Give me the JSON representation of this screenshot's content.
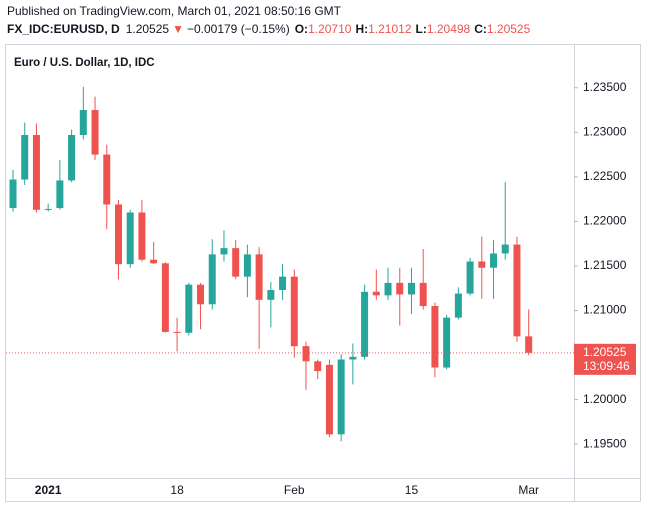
{
  "chart_data": {
    "type": "candlestick",
    "published": "Published on TradingView.com, March 01, 2021 08:50:16 GMT",
    "symbol": "FX_IDC:EURUSD, D",
    "last": "1.20525",
    "arrow": "▼",
    "change": "−0.00179 (−0.15%)",
    "ohlc_header": [
      {
        "label": "O:",
        "value": "1.20710"
      },
      {
        "label": "H:",
        "value": "1.21012"
      },
      {
        "label": "L:",
        "value": "1.20498"
      },
      {
        "label": "C:",
        "value": "1.20525"
      }
    ],
    "title": "Euro / U.S. Dollar, 1D, IDC",
    "up_color": "#26a69a",
    "down_color": "#ef5350",
    "categories": [
      null,
      null,
      null,
      "2021",
      null,
      null,
      null,
      null,
      null,
      null,
      null,
      null,
      null,
      null,
      "18",
      null,
      null,
      null,
      null,
      null,
      null,
      null,
      null,
      null,
      "Feb",
      null,
      null,
      null,
      null,
      null,
      null,
      null,
      null,
      null,
      "15",
      null,
      null,
      null,
      null,
      null,
      null,
      null,
      null,
      null,
      "Mar"
    ],
    "open": [
      1.2215,
      1.2247,
      1.2297,
      1.2213,
      1.2215,
      1.2246,
      1.2297,
      1.2325,
      1.2275,
      1.2219,
      1.2152,
      1.221,
      1.2157,
      1.2153,
      1.2076,
      1.2075,
      1.2129,
      1.2107,
      1.2163,
      1.217,
      1.2138,
      1.2163,
      1.2112,
      1.2123,
      1.2138,
      1.206,
      1.2043,
      1.2039,
      1.1961,
      1.2045,
      1.2048,
      1.2121,
      1.2117,
      1.2131,
      1.2118,
      1.2131,
      1.2105,
      1.2036,
      1.2092,
      1.2119,
      1.2155,
      1.2148,
      1.2164,
      1.2174,
      1.2071
    ],
    "high": [
      1.2258,
      1.2311,
      1.231,
      1.222,
      1.2269,
      1.2303,
      1.2351,
      1.234,
      1.2286,
      1.2224,
      1.2213,
      1.2224,
      1.2177,
      1.2154,
      1.2092,
      1.2131,
      1.2131,
      1.218,
      1.219,
      1.2179,
      1.2174,
      1.2171,
      1.2132,
      1.2152,
      1.2146,
      1.2065,
      1.2045,
      1.2045,
      1.2051,
      1.2063,
      1.2129,
      1.2146,
      1.2148,
      1.2148,
      1.2148,
      1.2169,
      1.2109,
      1.2095,
      1.2126,
      1.2159,
      1.2183,
      1.2179,
      1.2244,
      1.2183,
      1.21012
    ],
    "low": [
      1.2211,
      1.2241,
      1.221,
      1.2211,
      1.2213,
      1.2244,
      1.2292,
      1.2269,
      1.2191,
      1.2135,
      1.2148,
      1.2155,
      1.2152,
      1.2075,
      1.2054,
      1.2072,
      1.2079,
      1.2101,
      1.2155,
      1.2135,
      1.2115,
      1.2057,
      1.2081,
      1.2112,
      1.2047,
      1.2011,
      1.2023,
      1.1958,
      1.1953,
      1.2017,
      1.2045,
      1.2112,
      1.2112,
      1.2083,
      1.2096,
      1.2101,
      1.2025,
      1.2034,
      1.209,
      1.2117,
      1.2113,
      1.2113,
      1.2157,
      1.2065,
      1.20498
    ],
    "close": [
      1.2247,
      1.2297,
      1.2213,
      1.2214,
      1.2246,
      1.2297,
      1.2325,
      1.2275,
      1.2219,
      1.2152,
      1.221,
      1.2157,
      1.2153,
      1.2076,
      1.2075,
      1.2129,
      1.2107,
      1.2163,
      1.217,
      1.2138,
      1.2163,
      1.2112,
      1.2123,
      1.2138,
      1.206,
      1.2043,
      1.2032,
      1.1961,
      1.2045,
      1.2048,
      1.2121,
      1.2117,
      1.2131,
      1.2118,
      1.2131,
      1.2105,
      1.2036,
      1.2092,
      1.2119,
      1.2155,
      1.2148,
      1.2164,
      1.2174,
      1.2071,
      1.20525
    ],
    "ylim": [
      1.1912,
      1.2398
    ],
    "yticks": [
      {
        "value": 1.195,
        "label": "1.19500"
      },
      {
        "value": 1.2,
        "label": "1.20000"
      },
      {
        "value": 1.21,
        "label": "1.21000"
      },
      {
        "value": 1.215,
        "label": "1.21500"
      },
      {
        "value": 1.22,
        "label": "1.22000"
      },
      {
        "value": 1.225,
        "label": "1.22500"
      },
      {
        "value": 1.23,
        "label": "1.23000"
      },
      {
        "value": 1.235,
        "label": "1.23500"
      }
    ],
    "last_price": 1.20525,
    "countdown": "13:09:46",
    "grid": false
  }
}
